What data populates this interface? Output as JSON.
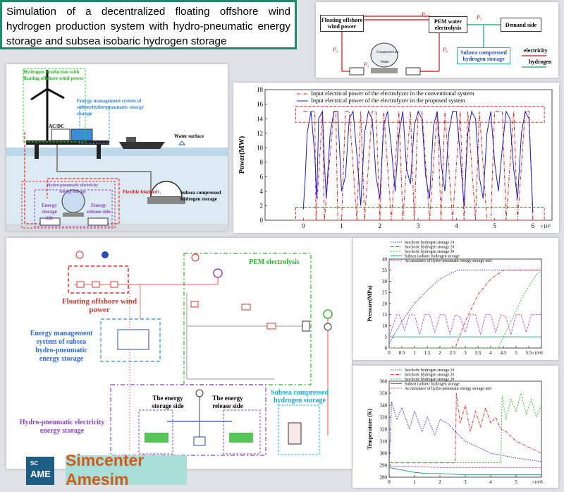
{
  "title": "Simulation of a decentralized floating offshore wind hydrogen production system with hydro-pneumatic energy storage and subsea isobaric hydrogen storage",
  "brand": {
    "logo_top": "SC",
    "logo_main": "AME",
    "name": "Simcenter Amesim"
  },
  "schematic": {
    "wind": "Floating offshore wind power",
    "pem": "PEM water electrolysis",
    "demand": "Demand side",
    "subsea": "Subsea compressed hydrogen storage",
    "legend_e": "electricity",
    "legend_h": "hydrogen",
    "p1": "P₁",
    "p2": "P₂",
    "p3": "P₃",
    "p4": "P₄",
    "p5": "P₅",
    "p6": "P₆",
    "comp_air": "Compressed air",
    "water": "Water"
  },
  "illustration": {
    "hp_label": "Hydrogen production with floating offshore wind power",
    "ems_label": "Energy management system of subsea hydro-pneumatic energy storage",
    "acdc": "AC/DC",
    "water_surface": "Water surface",
    "flex_bladder": "Flexible bladder",
    "subsea": "Subsea compressed hydrogen storage",
    "hpes": "Hydro-pneumatic electricity energy storage",
    "storage_side": "Energy storage side",
    "release_side": "Energy release side",
    "h2": "H₂"
  },
  "model": {
    "pem": "PEM electrolysis",
    "wind": "Floating offshore wind power",
    "ems": "Energy management system of subsea hydro-pneumatic energy storage",
    "hpes": "Hydro-pneumatic electricity energy storage",
    "storage_side": "The energy storage side",
    "release_side": "The energy release side",
    "subsea": "Subsea compressed hydrogen storage"
  },
  "chart_data": [
    {
      "type": "line",
      "ylabel": "Power(MW)",
      "ylim": [
        0,
        18
      ],
      "yticks": [
        0,
        2,
        4,
        6,
        8,
        10,
        12,
        14,
        16,
        18
      ],
      "xlim": [
        -1,
        6.5
      ],
      "xticks": [
        0,
        1,
        2,
        3,
        4,
        5,
        6
      ],
      "x_multiplier": "×10⁵",
      "legend": [
        "Input electrical power of the electrolyzer in the conventional system",
        "Input electrical power of the electrolyzer in the proposed system"
      ],
      "colors": [
        "#e02020",
        "#1c1ccf"
      ],
      "series": [
        {
          "name": "Input electrical power of the electrolyzer in the conventional system",
          "x": [
            0,
            0.3,
            0.33,
            0.5,
            0.55,
            0.8,
            0.85,
            0.9,
            1.0,
            1.1,
            1.2,
            1.4,
            1.5,
            1.6,
            1.8,
            1.9,
            2.0,
            2.1,
            2.3,
            2.5,
            2.6,
            2.8,
            2.9,
            3.0,
            3.1,
            3.3,
            3.5,
            3.6,
            3.7,
            3.9,
            4.1,
            4.2,
            4.3,
            4.5,
            4.6,
            4.8,
            4.9,
            5.0,
            5.2,
            5.3,
            5.5,
            5.6,
            5.8,
            5.9,
            6.0
          ],
          "values": [
            15,
            15,
            0,
            15,
            0,
            15,
            15,
            0,
            0,
            15,
            15,
            0,
            15,
            0,
            15,
            15,
            0,
            15,
            0,
            15,
            0,
            15,
            0,
            15,
            15,
            0,
            15,
            0,
            15,
            0,
            15,
            0,
            15,
            0,
            15,
            0,
            0,
            15,
            15,
            0,
            15,
            0,
            15,
            15,
            0
          ]
        },
        {
          "name": "Input electrical power of the electrolyzer in the proposed system",
          "x": [
            0,
            0.05,
            0.1,
            0.2,
            0.3,
            0.35,
            0.4,
            0.5,
            0.55,
            0.6,
            0.7,
            0.8,
            0.9,
            1.0,
            1.1,
            1.2,
            1.3,
            1.4,
            1.5,
            1.6,
            1.7,
            1.8,
            1.9,
            2.0,
            2.1,
            2.2,
            2.3,
            2.4,
            2.5,
            2.6,
            2.7,
            2.8,
            2.9,
            3.0,
            3.1,
            3.2,
            3.3,
            3.4,
            3.5,
            3.6,
            3.7,
            3.8,
            3.9,
            4.0,
            4.1,
            4.2,
            4.3,
            4.4,
            4.5,
            4.6,
            4.7,
            4.8,
            4.9,
            5.0,
            5.1,
            5.2,
            5.3,
            5.4,
            5.5,
            5.6,
            5.7,
            5.8,
            5.9,
            6.0
          ],
          "values": [
            1.5,
            6,
            12,
            15,
            9,
            3,
            14,
            15,
            8,
            3,
            12,
            15,
            15,
            4,
            6,
            14,
            15,
            9,
            2,
            12,
            15,
            14,
            6,
            3,
            13,
            15,
            10,
            4,
            12,
            15,
            7,
            5,
            13,
            15,
            14,
            6,
            3,
            13,
            15,
            8,
            4,
            12,
            15,
            15,
            9,
            2,
            12,
            15,
            14,
            6,
            3,
            12,
            15,
            8,
            4,
            10,
            15,
            14,
            7,
            3,
            12,
            15,
            14,
            1
          ]
        }
      ]
    },
    {
      "type": "line",
      "ylabel": "Pressure(MPa)",
      "ylim": [
        0,
        40
      ],
      "yticks": [
        0,
        5,
        10,
        15,
        20,
        25,
        30,
        35,
        40
      ],
      "xlim": [
        0,
        6
      ],
      "xticks": [
        0,
        0.5,
        1,
        1.5,
        2,
        2.5,
        3,
        3.5,
        4,
        4.5,
        5,
        5.5,
        6
      ],
      "x_multiplier": "×10⁵",
      "legend": [
        "Isochoric hydrogen storage 1#",
        "Isochoric hydrogen storage 2#",
        "Isochoric hydrogen storage 3#",
        "Subsea isobaric hydrogen storage",
        "Accumulator of hydro-pneumatic energy storage unit"
      ],
      "colors": [
        "#3838d8",
        "#e83030",
        "#30c830",
        "#2d9a7e",
        "#c65ad8"
      ],
      "series": [
        {
          "name": "Isochoric hydrogen storage 1#",
          "x": [
            0,
            0.5,
            1,
            1.5,
            2,
            2.5,
            2.7,
            6
          ],
          "values": [
            2,
            12,
            20,
            26,
            31,
            34,
            35,
            35
          ]
        },
        {
          "name": "Isochoric hydrogen storage 2#",
          "x": [
            0,
            2.6,
            3.0,
            3.5,
            4.0,
            4.5,
            6
          ],
          "values": [
            0,
            0,
            12,
            24,
            31,
            35,
            35
          ]
        },
        {
          "name": "Isochoric hydrogen storage 3#",
          "x": [
            0,
            4.3,
            4.8,
            5.3,
            5.8,
            6
          ],
          "values": [
            0,
            0,
            12,
            24,
            33,
            35
          ]
        },
        {
          "name": "Subsea isobaric hydrogen storage",
          "x": [
            0,
            6
          ],
          "values": [
            5,
            5
          ]
        },
        {
          "name": "Accumulator of hydro-pneumatic energy storage unit",
          "x": [
            0,
            0.3,
            0.4,
            0.6,
            0.8,
            1.0,
            1.2,
            1.4,
            1.6,
            1.8,
            2.0,
            2.2,
            2.4,
            2.6,
            2.8,
            3.0,
            3.2,
            3.4,
            3.6,
            3.8,
            4.0,
            4.2,
            4.4,
            4.6,
            4.8,
            5.0,
            5.2,
            5.4,
            5.6,
            5.8,
            6.0
          ],
          "values": [
            5,
            15,
            15,
            8,
            15,
            15,
            6,
            15,
            15,
            7,
            15,
            15,
            6,
            15,
            14,
            7,
            15,
            15,
            6,
            15,
            15,
            7,
            15,
            14,
            6,
            15,
            15,
            7,
            15,
            15,
            15
          ]
        }
      ]
    },
    {
      "type": "line",
      "ylabel": "Temperature (K)",
      "ylim": [
        280,
        360
      ],
      "yticks": [
        280,
        290,
        300,
        310,
        320,
        330,
        340,
        350,
        360
      ],
      "xlim": [
        0,
        6
      ],
      "xticks": [
        0,
        1,
        2,
        3,
        4,
        5,
        6
      ],
      "x_multiplier": "×10⁵",
      "legend": [
        "Isochoric hydrogen storage 1#",
        "Isochoric hydrogen storage 2#",
        "Isochoric hydrogen storage 3#",
        "Subsea isobaric hydrogen storage",
        "Accumulator of hydro-pneumatic energy storage unit"
      ],
      "colors": [
        "#3838d8",
        "#e83030",
        "#30c830",
        "#2d9a7e",
        "#c65ad8"
      ],
      "series": [
        {
          "name": "Isochoric hydrogen storage 1#",
          "x": [
            0,
            0.1,
            0.3,
            0.5,
            0.8,
            1.0,
            1.3,
            1.5,
            1.8,
            2.0,
            2.3,
            2.6,
            3.0,
            3.5,
            4.0,
            5.0,
            6.0
          ],
          "values": [
            292,
            343,
            328,
            338,
            320,
            335,
            318,
            330,
            315,
            328,
            325,
            318,
            310,
            305,
            300,
            296,
            293
          ]
        },
        {
          "name": "Isochoric hydrogen storage 2#",
          "x": [
            0,
            2.6,
            2.65,
            2.8,
            3.0,
            3.2,
            3.4,
            3.6,
            3.8,
            4.0,
            4.2,
            4.4,
            4.6,
            5.0,
            5.5,
            6.0
          ],
          "values": [
            292,
            292,
            350,
            325,
            340,
            318,
            335,
            322,
            338,
            325,
            330,
            320,
            318,
            310,
            305,
            300
          ]
        },
        {
          "name": "Isochoric hydrogen storage 3#",
          "x": [
            0,
            4.4,
            4.45,
            4.6,
            4.8,
            5.0,
            5.2,
            5.4,
            5.6,
            5.8,
            6.0
          ],
          "values": [
            292,
            292,
            348,
            328,
            345,
            335,
            350,
            332,
            345,
            330,
            340
          ]
        },
        {
          "name": "Subsea isobaric hydrogen storage",
          "x": [
            0,
            0.5,
            1,
            1.5,
            2,
            3,
            4,
            5,
            6
          ],
          "values": [
            288,
            286,
            284,
            283,
            283,
            282,
            282,
            282,
            282
          ]
        },
        {
          "name": "Accumulator of hydro-pneumatic energy storage unit",
          "x": [
            0,
            1,
            2,
            3,
            4,
            5,
            6
          ],
          "values": [
            289,
            289,
            288,
            288,
            288,
            288,
            288
          ]
        }
      ]
    }
  ]
}
